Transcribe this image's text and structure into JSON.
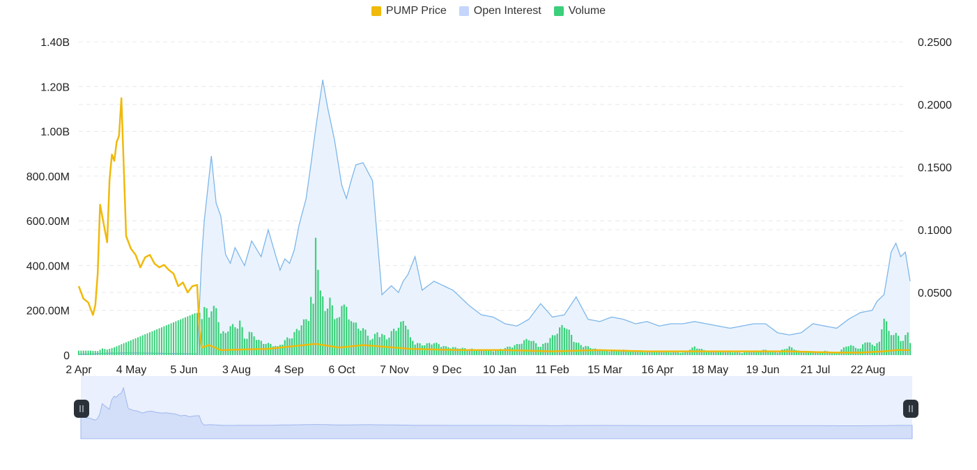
{
  "legend": {
    "items": [
      {
        "label": "PUMP Price",
        "color": "#f0b90b"
      },
      {
        "label": "Open Interest",
        "color": "#c5d5fb"
      },
      {
        "label": "Volume",
        "color": "#3ccf7b"
      }
    ]
  },
  "colors": {
    "price": "#f0b90b",
    "oi_line": "#7cb6ea",
    "oi_fill": "#eaf3fd",
    "volume": "#3ccf7b",
    "grid": "#e6e8ec",
    "slider_bg": "#eaf0fd",
    "slider_area": "#d3dff9",
    "handle": "#2b3139"
  },
  "chart_data": {
    "type": "line",
    "grid": "horizontal dashed",
    "legend_position": "top",
    "x_ticks": [
      "2 Apr",
      "4 May",
      "5 Jun",
      "3 Aug",
      "4 Sep",
      "6 Oct",
      "7 Nov",
      "9 Dec",
      "10 Jan",
      "11 Feb",
      "15 Mar",
      "16 Apr",
      "18 May",
      "19 Jun",
      "21 Jul",
      "22 Aug"
    ],
    "y_left": {
      "ticks": [
        "0",
        "200.00M",
        "400.00M",
        "600.00M",
        "800.00M",
        "1.00B",
        "1.20B",
        "1.40B"
      ],
      "range": [
        0,
        1400000000
      ]
    },
    "y_right": {
      "ticks": [
        "0.0500",
        "0.1000",
        "0.1500",
        "0.2000",
        "0.2500"
      ],
      "range": [
        0,
        0.25
      ]
    },
    "series": [
      {
        "name": "Open Interest",
        "axis": "left",
        "kind": "area",
        "x_index": [
          0,
          5,
          10,
          20,
          30,
          40,
          50,
          52,
          53,
          56,
          58,
          60,
          62,
          64,
          66,
          70,
          73,
          77,
          80,
          83,
          85,
          87,
          89,
          91,
          93,
          94,
          96,
          98,
          100,
          103,
          105,
          108,
          111,
          113,
          115,
          117,
          120,
          124,
          128,
          132,
          135,
          137,
          139,
          142,
          145,
          150,
          158,
          165,
          170,
          175,
          180,
          185,
          190,
          195,
          200,
          205,
          210,
          215,
          220,
          225,
          230,
          235,
          240,
          245,
          250,
          255,
          260,
          265,
          270,
          275,
          280,
          285,
          290,
          295,
          300,
          305,
          310,
          315,
          320,
          325,
          330,
          335,
          337,
          340,
          343,
          345,
          347,
          349,
          351
        ],
        "values": [
          4000000,
          5000000,
          8000000,
          10000000,
          9000000,
          7000000,
          6000000,
          450000000,
          600000000,
          890000000,
          680000000,
          620000000,
          450000000,
          410000000,
          480000000,
          400000000,
          510000000,
          440000000,
          560000000,
          450000000,
          380000000,
          430000000,
          410000000,
          470000000,
          580000000,
          620000000,
          700000000,
          850000000,
          1010000000,
          1230000000,
          1110000000,
          960000000,
          760000000,
          700000000,
          780000000,
          850000000,
          860000000,
          780000000,
          270000000,
          310000000,
          280000000,
          330000000,
          360000000,
          440000000,
          290000000,
          330000000,
          290000000,
          220000000,
          180000000,
          170000000,
          140000000,
          130000000,
          160000000,
          230000000,
          170000000,
          180000000,
          260000000,
          160000000,
          150000000,
          170000000,
          160000000,
          140000000,
          150000000,
          130000000,
          140000000,
          140000000,
          150000000,
          140000000,
          130000000,
          120000000,
          130000000,
          140000000,
          140000000,
          100000000,
          90000000,
          100000000,
          140000000,
          130000000,
          120000000,
          160000000,
          190000000,
          200000000,
          240000000,
          270000000,
          460000000,
          500000000,
          440000000,
          460000000,
          330000000
        ]
      },
      {
        "name": "PUMP Price",
        "axis": "right",
        "kind": "line",
        "x_index": [
          0,
          2,
          4,
          6,
          7,
          8,
          9,
          11,
          12,
          13,
          14,
          15,
          16,
          17,
          18,
          20,
          22,
          24,
          26,
          28,
          30,
          32,
          34,
          36,
          38,
          40,
          42,
          44,
          46,
          48,
          50,
          51,
          52,
          55,
          60,
          80,
          95,
          100,
          110,
          120,
          140,
          160,
          180,
          200,
          220,
          240,
          260,
          280,
          300,
          320,
          330,
          340,
          345,
          351
        ],
        "values": [
          0.055,
          0.045,
          0.042,
          0.032,
          0.04,
          0.065,
          0.12,
          0.1,
          0.09,
          0.14,
          0.16,
          0.155,
          0.17,
          0.175,
          0.205,
          0.095,
          0.085,
          0.08,
          0.07,
          0.078,
          0.08,
          0.073,
          0.07,
          0.072,
          0.068,
          0.065,
          0.055,
          0.058,
          0.05,
          0.055,
          0.056,
          0.02,
          0.006,
          0.008,
          0.004,
          0.005,
          0.008,
          0.009,
          0.006,
          0.008,
          0.005,
          0.004,
          0.004,
          0.003,
          0.004,
          0.003,
          0.003,
          0.003,
          0.003,
          0.002,
          0.002,
          0.003,
          0.004,
          0.004
        ]
      },
      {
        "name": "Volume",
        "axis": "left",
        "kind": "bar",
        "x_index": [
          5,
          8,
          10,
          12,
          15,
          52,
          53,
          55,
          56,
          58,
          60,
          62,
          64,
          66,
          68,
          70,
          72,
          74,
          76,
          78,
          80,
          82,
          84,
          86,
          88,
          90,
          92,
          94,
          96,
          97,
          98,
          99,
          100,
          101,
          102,
          104,
          106,
          108,
          110,
          112,
          114,
          116,
          118,
          120,
          122,
          124,
          126,
          128,
          130,
          132,
          135,
          138,
          140,
          142,
          145,
          150,
          155,
          160,
          165,
          170,
          175,
          180,
          185,
          190,
          195,
          200,
          205,
          210,
          213,
          215,
          218,
          220,
          225,
          230,
          235,
          240,
          245,
          250,
          255,
          260,
          265,
          270,
          275,
          280,
          285,
          290,
          295,
          300,
          305,
          310,
          315,
          320,
          325,
          330,
          332,
          335,
          338,
          340,
          342,
          345,
          348,
          350,
          351
        ],
        "values": [
          20000000,
          18000000,
          30000000,
          25000000,
          35000000,
          200000000,
          240000000,
          180000000,
          260000000,
          210000000,
          120000000,
          100000000,
          150000000,
          130000000,
          170000000,
          80000000,
          110000000,
          95000000,
          70000000,
          60000000,
          55000000,
          50000000,
          40000000,
          60000000,
          80000000,
          90000000,
          120000000,
          150000000,
          170000000,
          200000000,
          280000000,
          230000000,
          580000000,
          480000000,
          300000000,
          230000000,
          260000000,
          200000000,
          170000000,
          300000000,
          160000000,
          180000000,
          120000000,
          140000000,
          90000000,
          80000000,
          110000000,
          100000000,
          80000000,
          110000000,
          140000000,
          170000000,
          80000000,
          60000000,
          50000000,
          60000000,
          40000000,
          35000000,
          30000000,
          25000000,
          20000000,
          35000000,
          50000000,
          80000000,
          40000000,
          90000000,
          150000000,
          60000000,
          45000000,
          40000000,
          30000000,
          25000000,
          20000000,
          25000000,
          20000000,
          15000000,
          18000000,
          15000000,
          12000000,
          40000000,
          20000000,
          15000000,
          15000000,
          12000000,
          20000000,
          25000000,
          15000000,
          40000000,
          15000000,
          15000000,
          20000000,
          12000000,
          50000000,
          30000000,
          70000000,
          50000000,
          60000000,
          200000000,
          110000000,
          100000000,
          70000000,
          110000000,
          70000000
        ]
      }
    ]
  }
}
